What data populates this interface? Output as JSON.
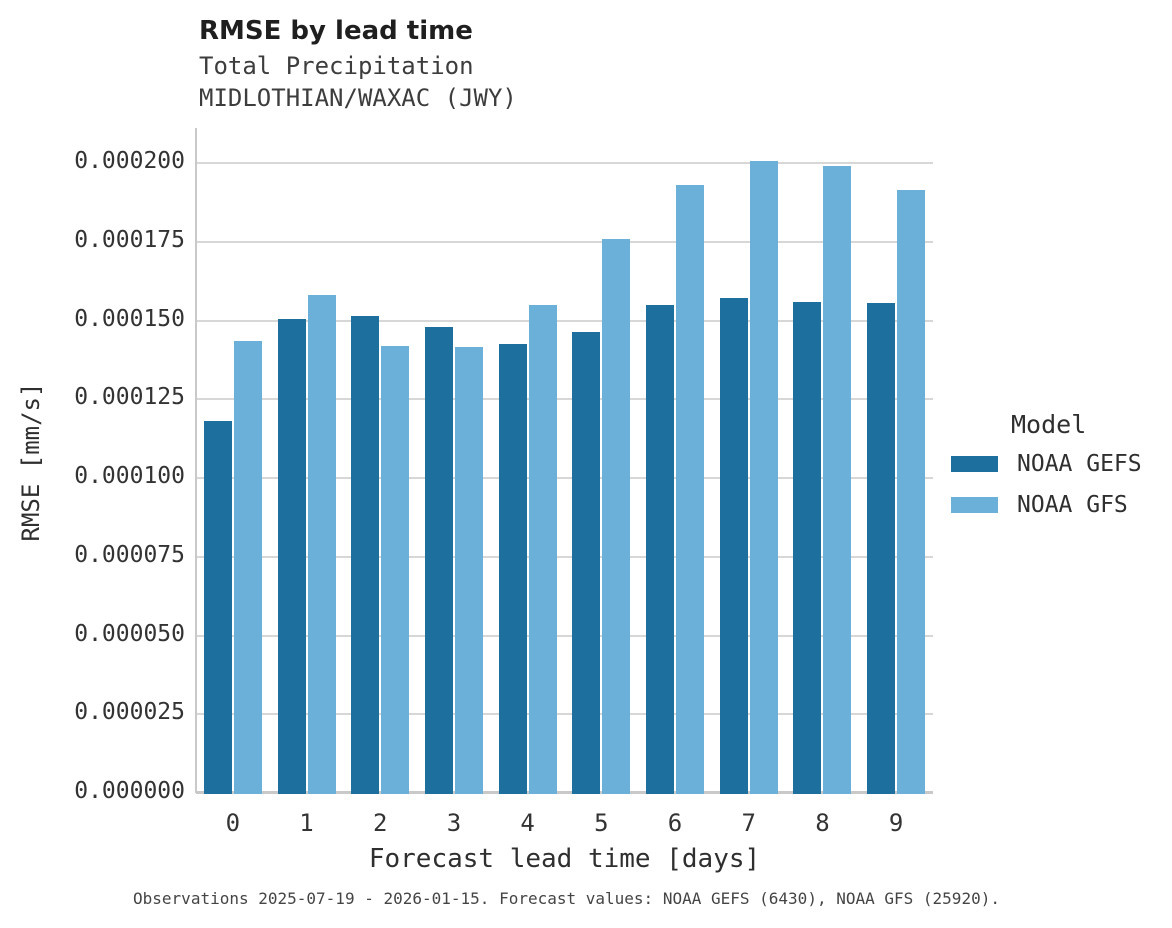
{
  "header": {
    "title": "RMSE by lead time",
    "subtitle1": "Total Precipitation",
    "subtitle2": "MIDLOTHIAN/WAXAC (JWY)"
  },
  "chart_data": {
    "type": "bar",
    "title": "RMSE by lead time",
    "subtitle": [
      "Total Precipitation",
      "MIDLOTHIAN/WAXAC (JWY)"
    ],
    "categories": [
      "0",
      "1",
      "2",
      "3",
      "4",
      "5",
      "6",
      "7",
      "8",
      "9"
    ],
    "series": [
      {
        "name": "NOAA GEFS",
        "color": "#1d6f9e",
        "values": [
          0.000118,
          0.0001505,
          0.0001515,
          0.000148,
          0.0001425,
          0.0001465,
          0.000155,
          0.000157,
          0.000156,
          0.0001555
        ]
      },
      {
        "name": "NOAA GFS",
        "color": "#6bb0d9",
        "values": [
          0.0001435,
          0.000158,
          0.000142,
          0.0001415,
          0.000155,
          0.000176,
          0.000193,
          0.0002005,
          0.000199,
          0.0001915
        ]
      }
    ],
    "xlabel": "Forecast lead time [days]",
    "ylabel": "RMSE [mm/s]",
    "ylim": [
      0,
      0.000211
    ],
    "y_tick_values": [
      0.0,
      2.5e-05,
      5e-05,
      7.5e-05,
      0.0001,
      0.000125,
      0.00015,
      0.000175,
      0.0002
    ],
    "y_tick_labels": [
      "0.000000",
      "0.000025",
      "0.000050",
      "0.000075",
      "0.000100",
      "0.000125",
      "0.000150",
      "0.000175",
      "0.000200"
    ],
    "grid": "horizontal",
    "legend_position": "right"
  },
  "legend": {
    "title": "Model",
    "items": [
      {
        "label": "NOAA GEFS",
        "color": "#1d6f9e"
      },
      {
        "label": "NOAA GFS",
        "color": "#6bb0d9"
      }
    ]
  },
  "caption": "Observations 2025-07-19 - 2026-01-15. Forecast values: NOAA GEFS (6430), NOAA GFS (25920).",
  "colors": {
    "gefs_bar": "#1d6f9e",
    "gfs_bar": "#6bb0d9",
    "gridline": "#d7d7d7",
    "axis_line": "#c9c9c9",
    "background": "#ffffff"
  }
}
